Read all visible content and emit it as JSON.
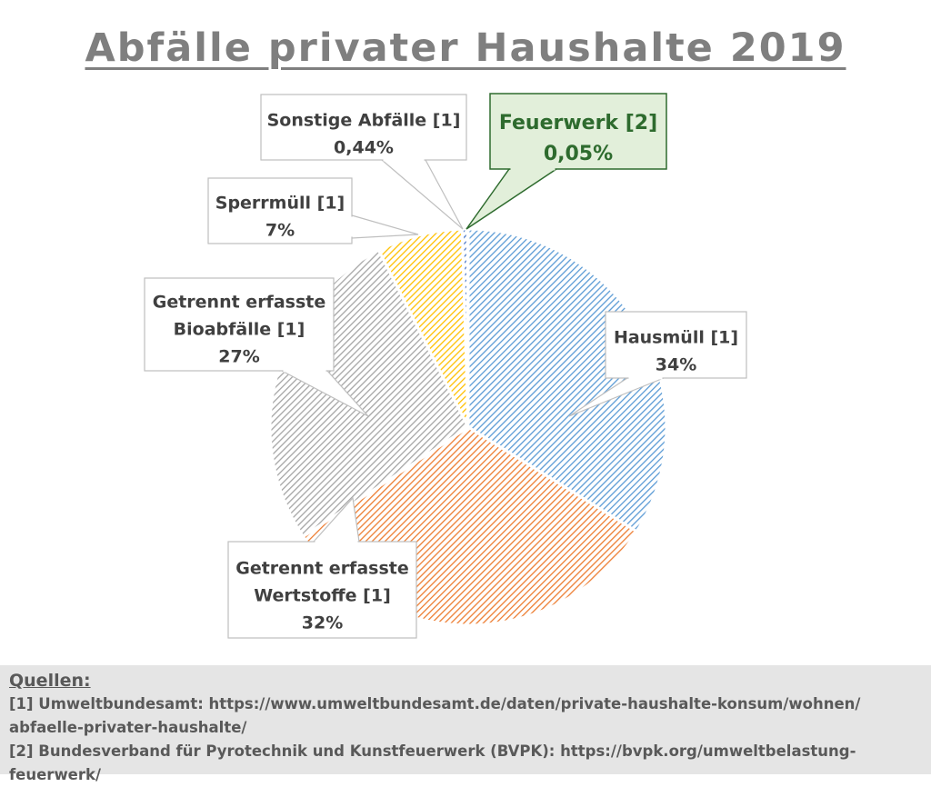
{
  "title": "Abfälle privater Haushalte 2019",
  "chart_data": {
    "type": "pie",
    "title": "Abfälle privater Haushalte 2019",
    "slices": [
      {
        "name": "Hausmüll [1]",
        "value": 34,
        "label": "34%",
        "color": "#5b9bd5"
      },
      {
        "name": "Getrennt erfasste Wertstoffe [1]",
        "value": 32,
        "label": "32%",
        "color": "#ed7d31"
      },
      {
        "name": "Getrennt erfasste Bioabfälle [1]",
        "value": 27,
        "label": "27%",
        "color": "#a5a5a5"
      },
      {
        "name": "Sperrmüll [1]",
        "value": 7,
        "label": "7%",
        "color": "#ffc000"
      },
      {
        "name": "Sonstige Abfälle [1]",
        "value": 0.44,
        "label": "0,44%",
        "color": "#4472c4"
      },
      {
        "name": "Feuerwerk [2]",
        "value": 0.05,
        "label": "0,05%",
        "color": "#70ad47"
      }
    ],
    "callouts": {
      "hausmuell": {
        "lines": [
          "Hausmüll [1]",
          "34%"
        ]
      },
      "wertstoffe": {
        "lines": [
          "Getrennt erfasste",
          "Wertstoffe [1]",
          "32%"
        ]
      },
      "bio": {
        "lines": [
          "Getrennt erfasste",
          "Bioabfälle [1]",
          "27%"
        ]
      },
      "sperr": {
        "lines": [
          "Sperrmüll [1]",
          "7%"
        ]
      },
      "sonstige": {
        "lines": [
          "Sonstige Abfälle [1]",
          "0,44%"
        ]
      },
      "feuerwerk": {
        "lines": [
          "Feuerwerk [2]",
          "0,05%"
        ]
      }
    }
  },
  "sources": {
    "heading": "Quellen:",
    "lines": [
      "[1] Umweltbundesamt: https://www.umweltbundesamt.de/daten/private-haushalte-konsum/wohnen/",
      "abfaelle-privater-haushalte/",
      "[2] Bundesverband für Pyrotechnik und Kunstfeuerwerk (BVPK): https://bvpk.org/umweltbelastung-feuerwerk/"
    ]
  }
}
